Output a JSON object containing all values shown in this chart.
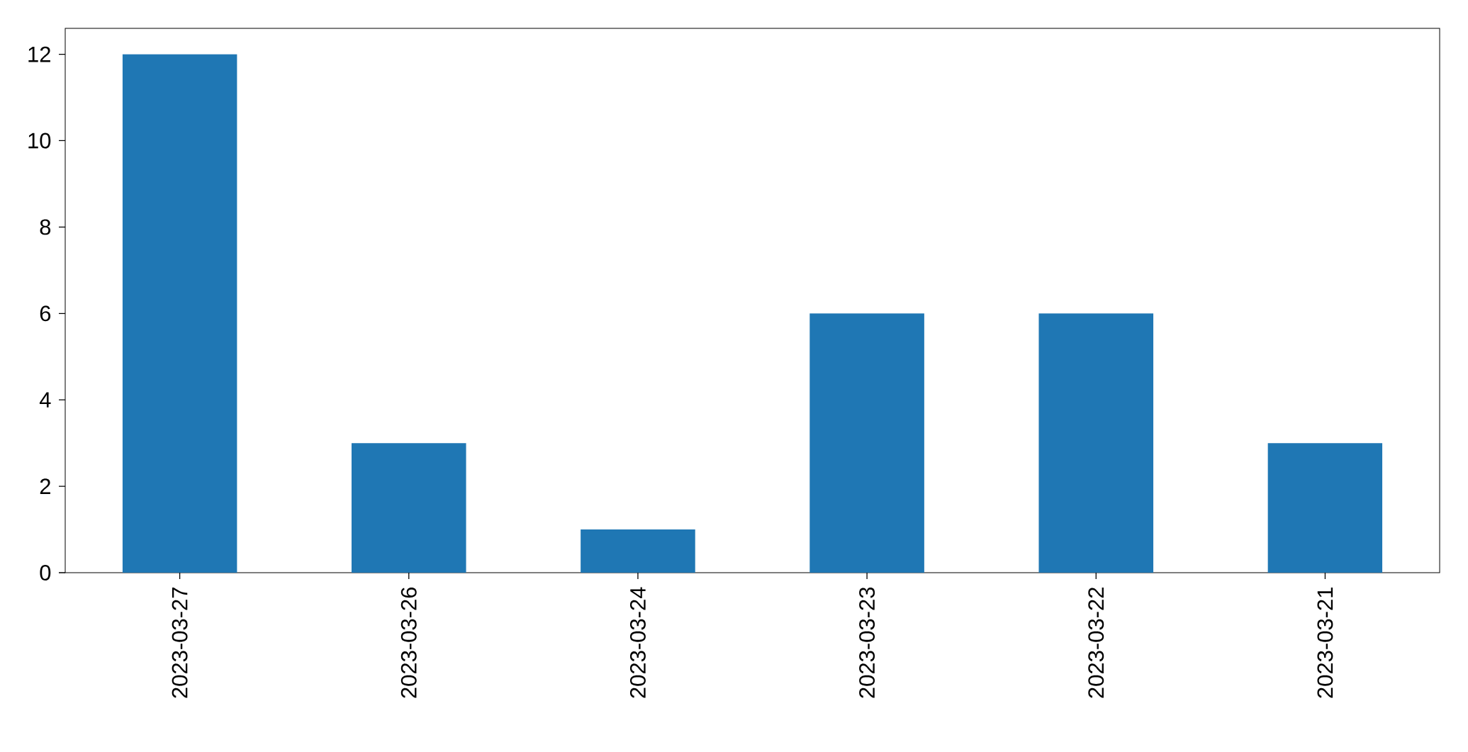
{
  "chart_data": {
    "type": "bar",
    "categories": [
      "2023-03-27",
      "2023-03-26",
      "2023-03-24",
      "2023-03-23",
      "2023-03-22",
      "2023-03-21"
    ],
    "values": [
      12,
      3,
      1,
      6,
      6,
      3
    ],
    "color": "#1f77b4",
    "ylim": [
      0,
      12.6
    ],
    "yticks": [
      0,
      2,
      4,
      6,
      8,
      10,
      12
    ]
  }
}
